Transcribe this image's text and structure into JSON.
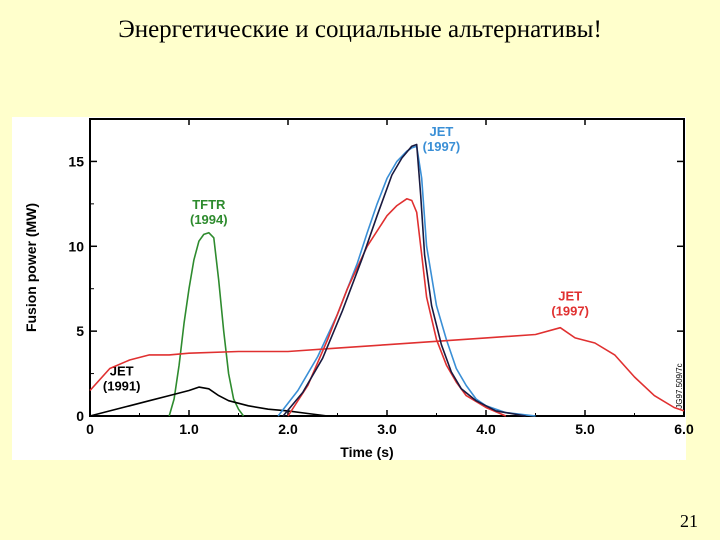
{
  "slide": {
    "title": "Энергетические и социальные альтернативы!",
    "page_number": "21"
  },
  "chart_data": {
    "type": "line",
    "title": "",
    "xlabel": "Time (s)",
    "ylabel": "Fusion power (MW)",
    "xlim": [
      0,
      6.0
    ],
    "ylim": [
      0,
      17.5
    ],
    "x_ticks": [
      "0",
      "1.0",
      "2.0",
      "3.0",
      "4.0",
      "5.0",
      "6.0"
    ],
    "y_ticks": [
      "0",
      "5",
      "10",
      "15"
    ],
    "grid": false,
    "side_code": "JG97.509/7c",
    "series": [
      {
        "label_lines": [
          "TFTR",
          "(1994)"
        ],
        "color": "#2e8b2e",
        "x": [
          0.8,
          0.85,
          0.9,
          0.95,
          1.0,
          1.05,
          1.1,
          1.15,
          1.2,
          1.25,
          1.3,
          1.35,
          1.4,
          1.45,
          1.5,
          1.55
        ],
        "y": [
          0,
          1.0,
          3.0,
          5.5,
          7.5,
          9.2,
          10.3,
          10.7,
          10.8,
          10.5,
          8.0,
          5.0,
          2.5,
          1.0,
          0.4,
          0
        ]
      },
      {
        "label_lines": [
          "JET",
          "(1991)"
        ],
        "color": "#000000",
        "x": [
          0.0,
          0.2,
          0.4,
          0.6,
          0.8,
          1.0,
          1.1,
          1.2,
          1.3,
          1.4,
          1.6,
          1.8,
          2.0,
          2.2,
          2.4
        ],
        "y": [
          0,
          0.3,
          0.6,
          0.9,
          1.2,
          1.5,
          1.7,
          1.6,
          1.2,
          0.9,
          0.6,
          0.4,
          0.3,
          0.15,
          0
        ]
      },
      {
        "label_lines": [
          "JET",
          "(1997)"
        ],
        "color": "#3a8fd6",
        "x": [
          1.9,
          2.1,
          2.3,
          2.5,
          2.7,
          2.8,
          2.9,
          3.0,
          3.1,
          3.2,
          3.25,
          3.3,
          3.35,
          3.4,
          3.5,
          3.6,
          3.7,
          3.8,
          3.9,
          4.0,
          4.2,
          4.5
        ],
        "y": [
          0,
          1.5,
          3.5,
          6.0,
          9.0,
          10.8,
          12.5,
          14.0,
          15.0,
          15.6,
          15.8,
          15.9,
          14.0,
          10.0,
          6.5,
          4.5,
          2.8,
          1.8,
          1.0,
          0.6,
          0.2,
          0
        ]
      },
      {
        "label_lines": [
          "JET",
          "(1997)"
        ],
        "color": "#e03030",
        "x": [
          0.0,
          0.2,
          0.4,
          0.6,
          0.8,
          1.0,
          1.5,
          2.0,
          2.5,
          3.0,
          3.5,
          4.0,
          4.5,
          4.75,
          4.9,
          5.1,
          5.3,
          5.5,
          5.7,
          5.9,
          6.0
        ],
        "y": [
          1.5,
          2.8,
          3.3,
          3.6,
          3.6,
          3.7,
          3.8,
          3.8,
          4.0,
          4.2,
          4.4,
          4.6,
          4.8,
          5.2,
          4.6,
          4.3,
          3.6,
          2.3,
          1.2,
          0.5,
          0.3
        ]
      },
      {
        "label_lines": [],
        "color": "#e03030",
        "x": [
          2.0,
          2.2,
          2.4,
          2.6,
          2.8,
          3.0,
          3.1,
          3.2,
          3.25,
          3.3,
          3.35,
          3.4,
          3.5,
          3.6,
          3.7,
          3.8,
          4.0,
          4.2
        ],
        "y": [
          0,
          1.8,
          4.5,
          7.5,
          10.0,
          11.8,
          12.4,
          12.8,
          12.7,
          12.0,
          9.5,
          7.0,
          4.5,
          3.0,
          2.0,
          1.2,
          0.5,
          0
        ]
      },
      {
        "label_lines": [],
        "color": "#1a1a40",
        "x": [
          1.95,
          2.15,
          2.35,
          2.55,
          2.75,
          2.9,
          3.05,
          3.15,
          3.25,
          3.3,
          3.34,
          3.38,
          3.45,
          3.55,
          3.65,
          3.75,
          3.9,
          4.1,
          4.4
        ],
        "y": [
          0,
          1.4,
          3.4,
          6.2,
          9.3,
          11.8,
          14.2,
          15.2,
          15.9,
          16.0,
          13.0,
          9.5,
          6.5,
          4.2,
          2.6,
          1.6,
          0.9,
          0.3,
          0
        ]
      }
    ],
    "label_positions": [
      "top-left-of-peak",
      "lower-left",
      "top-right-of-peak",
      "right",
      "",
      ""
    ]
  }
}
